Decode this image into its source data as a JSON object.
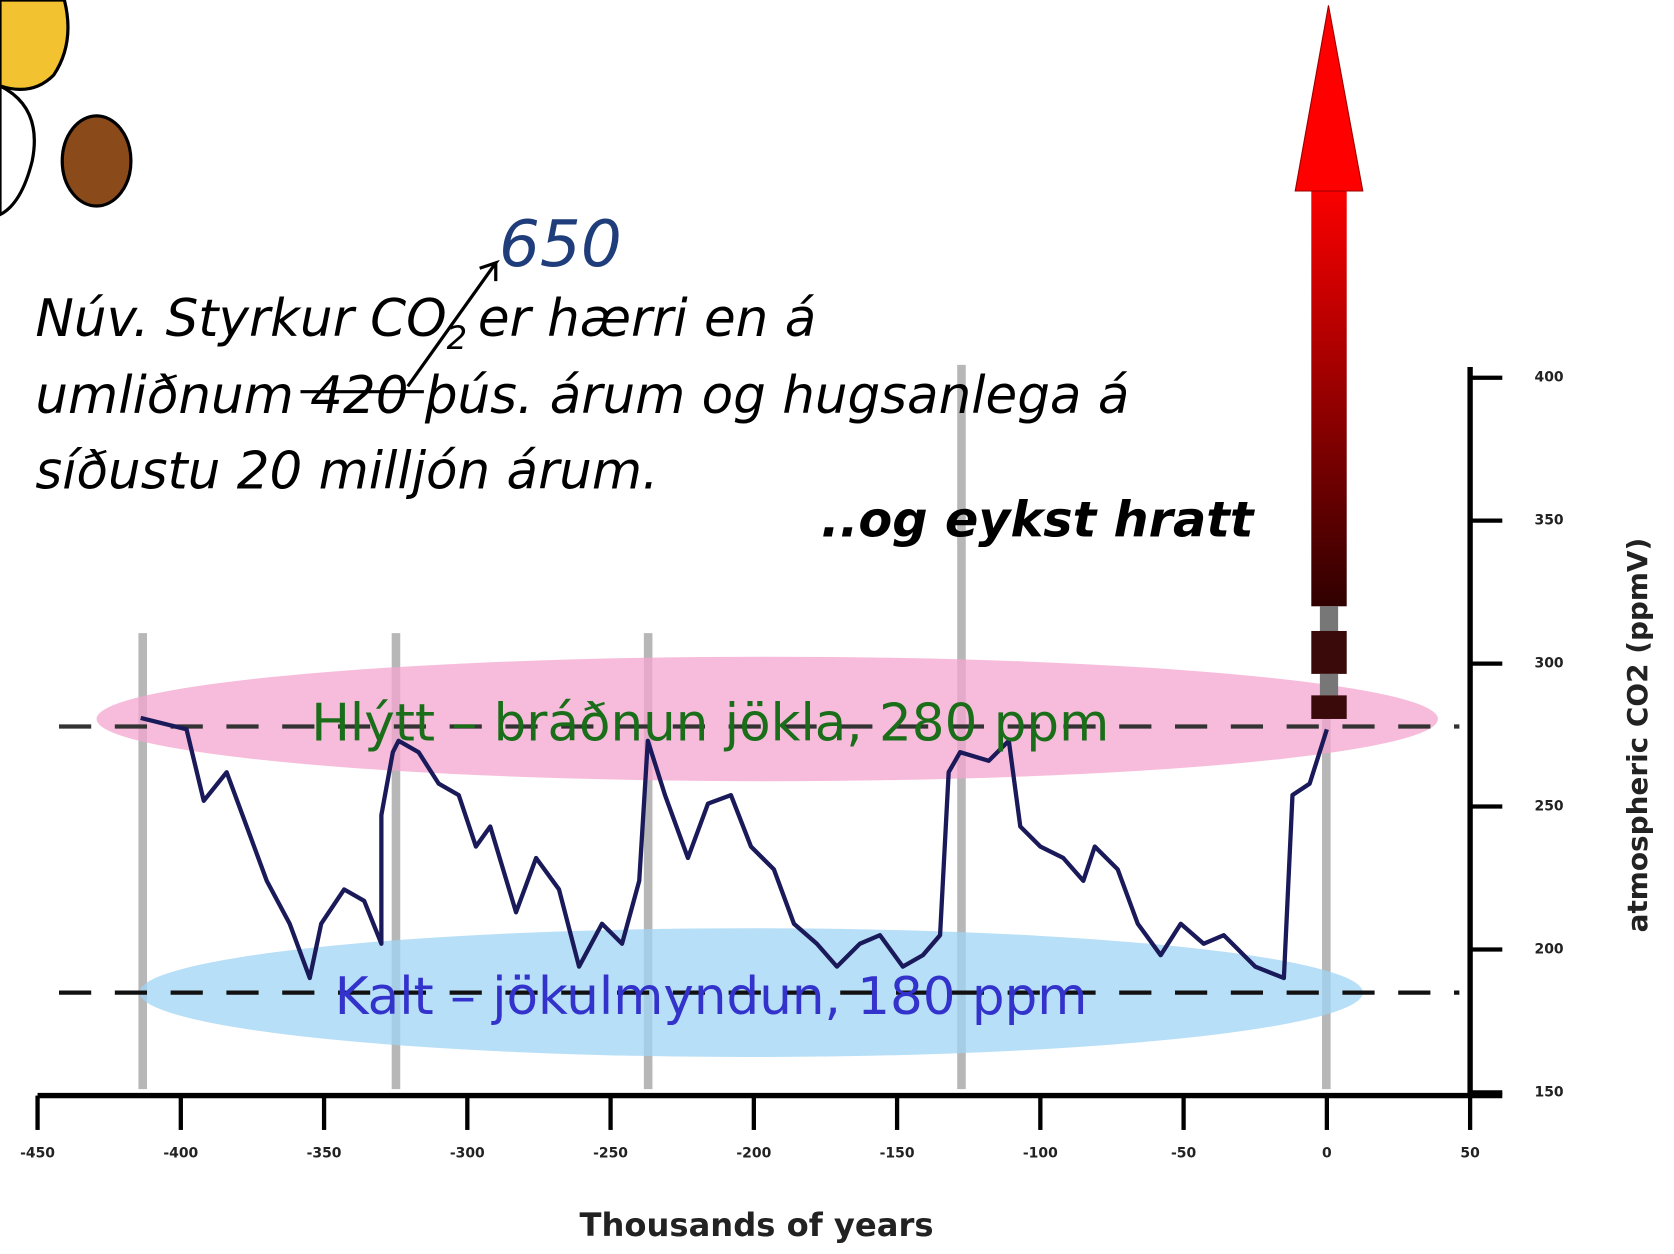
{
  "chart_data": {
    "type": "line",
    "x_label": "Thousands of years",
    "y_label": "atmospheric CO2 (ppmV)",
    "xlim": [
      -450,
      50
    ],
    "xticks": [
      -450,
      -400,
      -350,
      -300,
      -250,
      -200,
      -150,
      -100,
      -50,
      0,
      50
    ],
    "ylim": [
      150,
      400
    ],
    "yticks": [
      150,
      200,
      250,
      300,
      350,
      400
    ],
    "series": [
      {
        "color": "#1a1a5a",
        "x": [
          -414,
          -398,
          -392,
          -384,
          -377,
          -370,
          -362,
          -355,
          -351,
          -343,
          -336,
          -330,
          -330,
          -326,
          -324,
          -317,
          -310,
          -303,
          -297,
          -292,
          -283,
          -276,
          -268,
          -261,
          -253,
          -246,
          -240,
          -237,
          -231,
          -223,
          -216,
          -208,
          -201,
          -193,
          -186,
          -178,
          -171,
          -163,
          -156,
          -148,
          -141,
          -135,
          -132,
          -128,
          -118,
          -111,
          -107,
          -100,
          -92,
          -85,
          -81,
          -73,
          -66,
          -58,
          -51,
          -43,
          -36,
          -25,
          -15,
          -12,
          -6,
          0
        ],
        "values": [
          281,
          277,
          252,
          262,
          243,
          224,
          209,
          190,
          209,
          221,
          217,
          202,
          247,
          269,
          273,
          269,
          258,
          254,
          236,
          243,
          213,
          232,
          221,
          194,
          209,
          202,
          224,
          273,
          254,
          232,
          251,
          254,
          236,
          228,
          209,
          202,
          194,
          202,
          205,
          194,
          198,
          205,
          262,
          269,
          266,
          273,
          243,
          236,
          232,
          224,
          236,
          228,
          209,
          198,
          209,
          202,
          205,
          194,
          190,
          254,
          258,
          277
        ]
      }
    ],
    "new_value": "650",
    "note": [
      "Núv. Styrkur CO",
      "2",
      "er hærri en á",
      "umliðnum 420 þús. árum og hugsanlega á",
      "síðustu 20 milljón árum."
    ],
    "rising": "..og eykst hratt",
    "warm_label": "Hlýtt – bráðnun jökla, 280 ppm",
    "cold_label": "Kalt – jökulmyndun, 180 ppm"
  }
}
